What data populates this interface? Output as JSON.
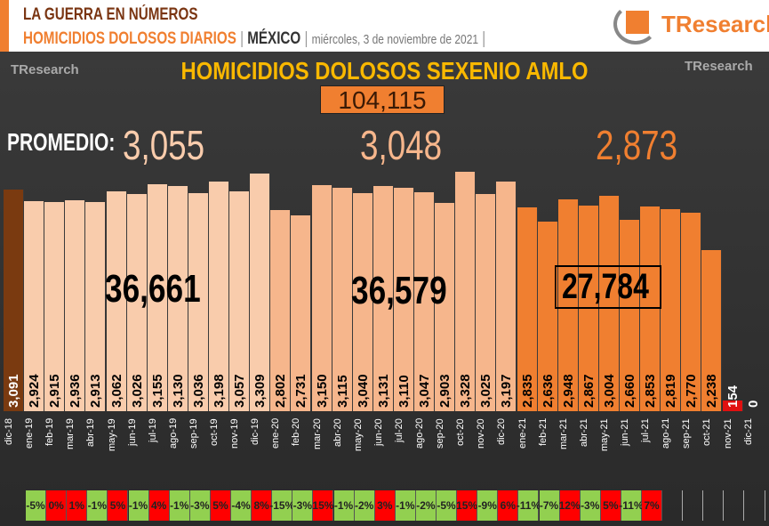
{
  "header": {
    "title1": "LA GUERRA EN NÚMEROS",
    "subtitle": "HOMICIDIOS DOLOSOS DIARIOS",
    "sep": "|",
    "country": "MÉXICO",
    "date": "miércoles, 3 de noviembre de 2021",
    "logo": "TResearch"
  },
  "chart_data": {
    "type": "bar",
    "title": "HOMICIDIOS DOLOSOS SEXENIO AMLO",
    "total": "104,115",
    "promedio_label": "PROMEDIO:",
    "averages": [
      "3,055",
      "3,048",
      "2,873"
    ],
    "year_totals": [
      "36,661",
      "36,579",
      "27,784"
    ],
    "categories": [
      "dic-18",
      "ene-19",
      "feb-19",
      "mar-19",
      "abr-19",
      "may-19",
      "jun-19",
      "jul-19",
      "ago-19",
      "sep-19",
      "oct-19",
      "nov-19",
      "dic-19",
      "ene-20",
      "feb-20",
      "mar-20",
      "abr-20",
      "may-20",
      "jun-20",
      "jul-20",
      "ago-20",
      "sep-20",
      "oct-20",
      "nov-20",
      "dic-20",
      "ene-21",
      "feb-21",
      "mar-21",
      "abr-21",
      "may-21",
      "jun-21",
      "jul-21",
      "ago-21",
      "sep-21",
      "oct-21",
      "nov-21",
      "dic-21"
    ],
    "values": [
      3091,
      2924,
      2915,
      2936,
      2913,
      3062,
      3026,
      3155,
      3130,
      3036,
      3198,
      3057,
      3309,
      2802,
      2731,
      3150,
      3115,
      3040,
      3131,
      3110,
      3047,
      2903,
      3328,
      3025,
      3197,
      2835,
      2636,
      2948,
      2867,
      3004,
      2660,
      2853,
      2819,
      2770,
      2238,
      154,
      0
    ],
    "value_labels": [
      "3,091",
      "2,924",
      "2,915",
      "2,936",
      "2,913",
      "3,062",
      "3,026",
      "3,155",
      "3,130",
      "3,036",
      "3,198",
      "3,057",
      "3,309",
      "2,802",
      "2,731",
      "3,150",
      "3,115",
      "3,040",
      "3,131",
      "3,110",
      "3,047",
      "2,903",
      "3,328",
      "3,025",
      "3,197",
      "2,835",
      "2,636",
      "2,948",
      "2,867",
      "3,004",
      "2,660",
      "2,853",
      "2,819",
      "2,770",
      "2,238",
      "154",
      "0"
    ],
    "pct_change": [
      "-5%",
      "0%",
      "1%",
      "-1%",
      "5%",
      "-1%",
      "4%",
      "-1%",
      "-3%",
      "5%",
      "-4%",
      "8%",
      "-15%",
      "-3%",
      "15%",
      "-1%",
      "-2%",
      "3%",
      "-1%",
      "-2%",
      "-5%",
      "15%",
      "-9%",
      "6%",
      "-11%",
      "-7%",
      "12%",
      "-3%",
      "5%",
      "-11%",
      "7%"
    ],
    "ylim": [
      0,
      3400
    ],
    "colors": {
      "2018": "#7a3a10",
      "2019": "#f9ccac",
      "2020": "#f6b68c",
      "2021": "#f07f30",
      "partial": "#e01010",
      "up": "#ff0000",
      "down": "#92d050"
    }
  }
}
